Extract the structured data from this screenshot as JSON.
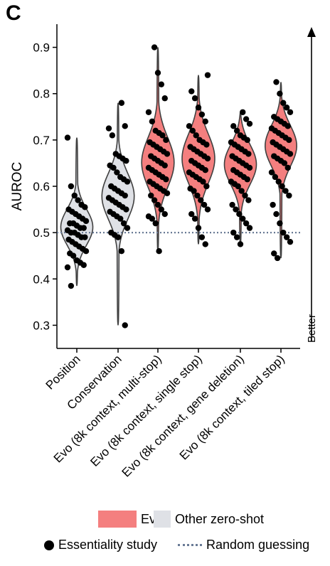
{
  "panel_label": "C",
  "colors": {
    "evo": "#f47f7f",
    "other_zero_shot": "#dfe1e6",
    "violin_outline": "#404040",
    "random_line": "#6a7b96",
    "points": "#000000"
  },
  "chart_data": {
    "type": "violin",
    "ylabel": "AUROC",
    "ylim": [
      0.25,
      0.95
    ],
    "yticks": [
      "0.3",
      "0.4",
      "0.5",
      "0.6",
      "0.7",
      "0.8",
      "0.9"
    ],
    "better_label": "Better",
    "reference_line": {
      "name": "Random guessing",
      "value": 0.5
    },
    "categories": [
      "Position",
      "Conservation",
      "Evo (8k context, multi-stop)",
      "Evo (8k context, single stop)",
      "Evo (8k context, gene deletion)",
      "Evo (8k context, tiled stop)"
    ],
    "groups": [
      "other",
      "other",
      "evo",
      "evo",
      "evo",
      "evo"
    ],
    "violins": [
      {
        "min": 0.385,
        "max": 0.705,
        "center": 0.51,
        "spread": 0.04
      },
      {
        "min": 0.3,
        "max": 0.78,
        "center": 0.58,
        "spread": 0.05
      },
      {
        "min": 0.46,
        "max": 0.9,
        "center": 0.65,
        "spread": 0.055
      },
      {
        "min": 0.475,
        "max": 0.84,
        "center": 0.66,
        "spread": 0.055
      },
      {
        "min": 0.475,
        "max": 0.76,
        "center": 0.65,
        "spread": 0.045
      },
      {
        "min": 0.445,
        "max": 0.825,
        "center": 0.69,
        "spread": 0.045
      }
    ],
    "points": [
      [
        0.705,
        0.6,
        0.58,
        0.57,
        0.56,
        0.555,
        0.55,
        0.545,
        0.54,
        0.535,
        0.53,
        0.525,
        0.52,
        0.52,
        0.515,
        0.51,
        0.51,
        0.505,
        0.5,
        0.5,
        0.495,
        0.49,
        0.49,
        0.485,
        0.48,
        0.475,
        0.47,
        0.465,
        0.46,
        0.455,
        0.45,
        0.44,
        0.435,
        0.43,
        0.425,
        0.385
      ],
      [
        0.78,
        0.73,
        0.725,
        0.71,
        0.67,
        0.665,
        0.66,
        0.655,
        0.645,
        0.64,
        0.63,
        0.62,
        0.615,
        0.61,
        0.6,
        0.595,
        0.59,
        0.585,
        0.58,
        0.575,
        0.57,
        0.565,
        0.56,
        0.555,
        0.55,
        0.545,
        0.54,
        0.535,
        0.53,
        0.52,
        0.51,
        0.5,
        0.495,
        0.49,
        0.46,
        0.3
      ],
      [
        0.9,
        0.845,
        0.82,
        0.79,
        0.76,
        0.74,
        0.72,
        0.715,
        0.71,
        0.7,
        0.695,
        0.69,
        0.685,
        0.68,
        0.675,
        0.67,
        0.665,
        0.66,
        0.655,
        0.65,
        0.645,
        0.64,
        0.635,
        0.63,
        0.625,
        0.62,
        0.615,
        0.61,
        0.605,
        0.6,
        0.595,
        0.59,
        0.585,
        0.58,
        0.57,
        0.56,
        0.55,
        0.54,
        0.535,
        0.53,
        0.52,
        0.46
      ],
      [
        0.84,
        0.805,
        0.79,
        0.77,
        0.755,
        0.74,
        0.73,
        0.72,
        0.71,
        0.7,
        0.695,
        0.69,
        0.685,
        0.68,
        0.675,
        0.67,
        0.665,
        0.66,
        0.655,
        0.65,
        0.645,
        0.64,
        0.635,
        0.63,
        0.625,
        0.62,
        0.615,
        0.61,
        0.6,
        0.595,
        0.59,
        0.58,
        0.57,
        0.56,
        0.55,
        0.54,
        0.53,
        0.51,
        0.49,
        0.475
      ],
      [
        0.76,
        0.745,
        0.735,
        0.73,
        0.72,
        0.71,
        0.705,
        0.7,
        0.695,
        0.69,
        0.685,
        0.68,
        0.675,
        0.67,
        0.665,
        0.66,
        0.655,
        0.65,
        0.645,
        0.64,
        0.635,
        0.63,
        0.625,
        0.62,
        0.615,
        0.61,
        0.605,
        0.6,
        0.59,
        0.58,
        0.57,
        0.56,
        0.55,
        0.54,
        0.53,
        0.52,
        0.51,
        0.5,
        0.49,
        0.475
      ],
      [
        0.825,
        0.8,
        0.78,
        0.77,
        0.76,
        0.75,
        0.745,
        0.74,
        0.735,
        0.73,
        0.725,
        0.72,
        0.715,
        0.71,
        0.705,
        0.7,
        0.695,
        0.69,
        0.685,
        0.68,
        0.675,
        0.67,
        0.665,
        0.66,
        0.655,
        0.65,
        0.64,
        0.63,
        0.62,
        0.61,
        0.6,
        0.59,
        0.58,
        0.56,
        0.54,
        0.52,
        0.5,
        0.49,
        0.48,
        0.455,
        0.445
      ]
    ]
  },
  "legend": {
    "evo_label": "Evo",
    "other_label": "Other zero-shot",
    "essentiality_label": "Essentiality study",
    "random_label": "Random guessing"
  }
}
